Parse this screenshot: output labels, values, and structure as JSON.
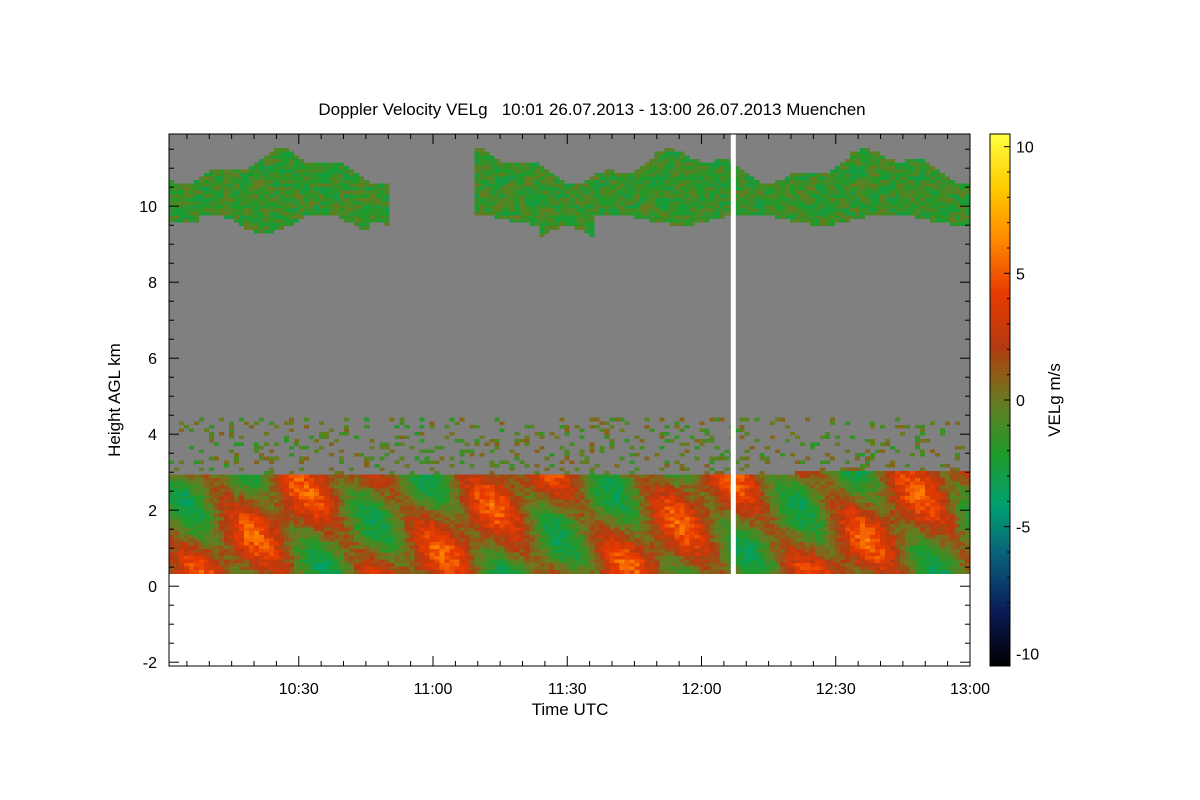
{
  "chart_data": {
    "type": "heatmap",
    "title": "Doppler Velocity VELg   10:01 26.07.2013 - 13:00 26.07.2013 Muenchen",
    "xlabel": "Time UTC",
    "ylabel": "Height AGL km",
    "x_ticks": [
      "10:30",
      "11:00",
      "11:30",
      "12:00",
      "12:30",
      "13:00"
    ],
    "x_tick_values_min": [
      630,
      660,
      690,
      720,
      750,
      780
    ],
    "xlim_min": [
      601,
      780
    ],
    "ylim_km": [
      -2.1,
      11.9
    ],
    "y_ticks": [
      -2,
      0,
      2,
      4,
      6,
      8,
      10
    ],
    "y_tick_labels": [
      "-2",
      "0",
      "2",
      "4",
      "6",
      "8",
      "10"
    ],
    "colorbar": {
      "label": "VELg m/s",
      "range": [
        -10.5,
        10.5
      ],
      "ticks": [
        -10,
        -5,
        0,
        5,
        10
      ],
      "tick_labels": [
        "-10",
        "-5",
        "0",
        "5",
        "10"
      ],
      "colors": [
        "#000000",
        "#0a1a55",
        "#0a5a7a",
        "#00a070",
        "#1f9a2a",
        "#6a7a20",
        "#b33a10",
        "#e83a00",
        "#ff8800",
        "#ffcc00",
        "#ffff40"
      ]
    },
    "no_signal_color": "#808080",
    "data_gap_time_min": 727,
    "layers": [
      {
        "name": "upper-cloud",
        "height_km": [
          9.4,
          11.4
        ],
        "velocity_ms": -1.5
      },
      {
        "name": "mid-layer",
        "height_km": [
          2.5,
          4.4
        ],
        "velocity_ms": -0.5
      },
      {
        "name": "boundary-layer",
        "height_km": [
          0.3,
          2.9
        ],
        "velocity_ms": 1.0
      }
    ]
  }
}
